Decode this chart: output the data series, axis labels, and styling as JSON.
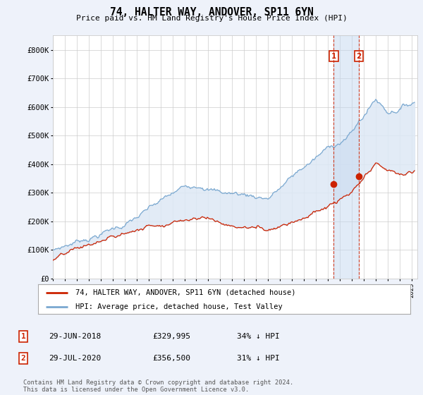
{
  "title": "74, HALTER WAY, ANDOVER, SP11 6YN",
  "subtitle": "Price paid vs. HM Land Registry's House Price Index (HPI)",
  "ylabel_ticks": [
    "£0",
    "£100K",
    "£200K",
    "£300K",
    "£400K",
    "£500K",
    "£600K",
    "£700K",
    "£800K"
  ],
  "ytick_values": [
    0,
    100000,
    200000,
    300000,
    400000,
    500000,
    600000,
    700000,
    800000
  ],
  "ylim": [
    0,
    850000
  ],
  "xlim_start": 1995.0,
  "xlim_end": 2025.5,
  "hpi_color": "#7aa8d0",
  "hpi_fill_color": "#c5d8ec",
  "price_color": "#cc2200",
  "marker1_date": 2018.497,
  "marker2_date": 2020.578,
  "marker1_price": 329995,
  "marker2_price": 356500,
  "marker1_hpi": 498000,
  "marker2_hpi": 541000,
  "legend_label_red": "74, HALTER WAY, ANDOVER, SP11 6YN (detached house)",
  "legend_label_blue": "HPI: Average price, detached house, Test Valley",
  "table_row1": [
    "1",
    "29-JUN-2018",
    "£329,995",
    "34% ↓ HPI"
  ],
  "table_row2": [
    "2",
    "29-JUL-2020",
    "£356,500",
    "31% ↓ HPI"
  ],
  "footnote": "Contains HM Land Registry data © Crown copyright and database right 2024.\nThis data is licensed under the Open Government Licence v3.0.",
  "background_color": "#eef2fa",
  "plot_bg_color": "#ffffff",
  "grid_color": "#cccccc",
  "shade_between_color": "#dde8f5"
}
